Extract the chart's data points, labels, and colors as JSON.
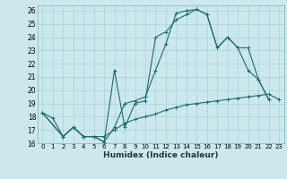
{
  "xlabel": "Humidex (Indice chaleur)",
  "bg_color": "#cce8ed",
  "grid_color": "#aad0d8",
  "line_color": "#1a6b6b",
  "xlim": [
    -0.5,
    23.5
  ],
  "ylim": [
    16,
    26.4
  ],
  "line1": {
    "x": [
      0,
      1,
      2,
      3,
      4,
      5,
      6,
      7,
      8,
      9,
      10,
      11,
      12,
      13,
      14,
      15,
      16,
      17,
      18,
      19,
      20,
      21,
      22
    ],
    "y": [
      18.3,
      17.9,
      16.5,
      17.2,
      16.5,
      16.5,
      16.1,
      21.5,
      17.2,
      19.0,
      19.2,
      24.0,
      24.4,
      25.3,
      25.7,
      26.1,
      25.7,
      23.2,
      24.0,
      23.2,
      21.5,
      20.8,
      19.3
    ]
  },
  "line2": {
    "x": [
      0,
      2,
      3,
      4,
      5,
      6,
      7,
      8,
      9,
      10,
      11,
      12,
      13,
      14,
      15,
      16,
      17,
      18,
      19,
      20,
      21,
      22
    ],
    "y": [
      18.3,
      16.5,
      17.2,
      16.5,
      16.5,
      16.1,
      17.2,
      19.0,
      19.2,
      19.5,
      21.5,
      23.5,
      25.8,
      26.0,
      26.1,
      25.7,
      23.2,
      24.0,
      23.2,
      23.2,
      20.8,
      19.3
    ]
  },
  "line3": {
    "x": [
      0,
      2,
      3,
      4,
      5,
      6,
      7,
      8,
      9,
      10,
      11,
      12,
      13,
      14,
      15,
      16,
      17,
      18,
      19,
      20,
      21,
      22,
      23
    ],
    "y": [
      18.3,
      16.5,
      17.2,
      16.5,
      16.5,
      16.5,
      17.0,
      17.5,
      17.8,
      18.0,
      18.2,
      18.5,
      18.7,
      18.9,
      19.0,
      19.1,
      19.2,
      19.3,
      19.4,
      19.5,
      19.6,
      19.7,
      19.3
    ]
  }
}
